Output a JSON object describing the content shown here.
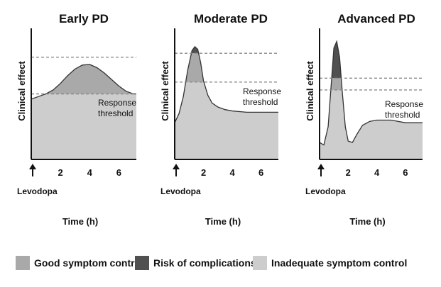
{
  "colors": {
    "good": "#a9a9a9",
    "risk": "#505050",
    "inadequate": "#cdcdcd",
    "threshold_line": "#8a8a8a",
    "axis": "#111111"
  },
  "legend": [
    {
      "key": "good",
      "label": "Good symptom control"
    },
    {
      "key": "risk",
      "label": "Risk of complications"
    },
    {
      "key": "inadequate",
      "label": "Inadequate symptom control"
    }
  ],
  "chart_data": [
    {
      "type": "area",
      "title": "Early PD",
      "ylabel": "Clinical effect",
      "xlabel": "Time (h)",
      "marker_label": "Levodopa",
      "annotation": [
        "Response",
        "threshold"
      ],
      "xlim": [
        0,
        7.2
      ],
      "ylim": [
        0,
        10
      ],
      "xticks": [
        2,
        4,
        6
      ],
      "response_threshold": 5.0,
      "complication_threshold": 7.8,
      "x": [
        0,
        0.5,
        1,
        1.5,
        2,
        2.5,
        3,
        3.5,
        4,
        4.5,
        5,
        5.5,
        6,
        6.5,
        7,
        7.2
      ],
      "y": [
        4.6,
        4.8,
        5.0,
        5.3,
        5.8,
        6.4,
        6.9,
        7.2,
        7.25,
        7.0,
        6.6,
        6.1,
        5.6,
        5.2,
        5.0,
        5.0
      ]
    },
    {
      "type": "area",
      "title": "Moderate PD",
      "ylabel": "Clinical effect",
      "xlabel": "Time (h)",
      "marker_label": "Levodopa",
      "annotation": [
        "Response",
        "threshold"
      ],
      "xlim": [
        0,
        7.2
      ],
      "ylim": [
        0,
        10
      ],
      "xticks": [
        2,
        4,
        6
      ],
      "response_threshold": 5.9,
      "complication_threshold": 8.1,
      "x": [
        0,
        0.3,
        0.6,
        0.9,
        1.2,
        1.4,
        1.6,
        1.8,
        2.0,
        2.3,
        2.6,
        3.0,
        3.5,
        4.0,
        5.0,
        6.0,
        7.2
      ],
      "y": [
        2.8,
        3.5,
        4.8,
        6.8,
        8.3,
        8.6,
        8.4,
        7.4,
        6.0,
        4.9,
        4.3,
        4.0,
        3.8,
        3.7,
        3.6,
        3.6,
        3.6
      ]
    },
    {
      "type": "area",
      "title": "Advanced PD",
      "ylabel": "Clinical effect",
      "xlabel": "Time (h)",
      "marker_label": "Levodopa",
      "annotation": [
        "Response",
        "threshold"
      ],
      "xlim": [
        0,
        7.2
      ],
      "ylim": [
        0,
        10
      ],
      "xticks": [
        2,
        4,
        6
      ],
      "response_threshold": 5.3,
      "complication_threshold": 6.2,
      "x": [
        0,
        0.3,
        0.6,
        0.8,
        1.0,
        1.2,
        1.4,
        1.6,
        1.8,
        2.0,
        2.3,
        2.6,
        3.0,
        3.5,
        4.0,
        5.0,
        6.0,
        7.2
      ],
      "y": [
        1.3,
        1.1,
        2.5,
        5.5,
        8.5,
        9.0,
        7.8,
        5.0,
        2.5,
        1.4,
        1.3,
        1.9,
        2.6,
        2.9,
        3.0,
        3.0,
        2.8,
        2.8
      ]
    }
  ]
}
